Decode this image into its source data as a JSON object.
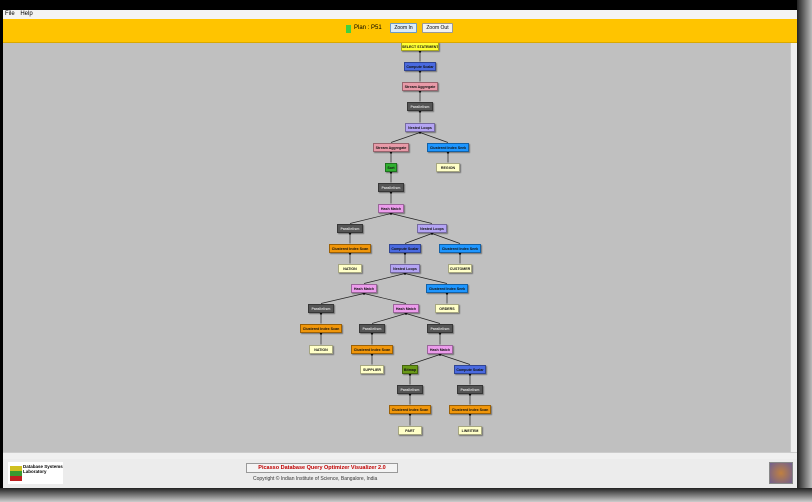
{
  "menu": [
    "File",
    "Help"
  ],
  "toolbar": {
    "plan_label": "Plan : P51",
    "plan_color": "#40d040",
    "zoom_in": "Zoom In",
    "zoom_out": "Zoom Out"
  },
  "footer": {
    "title": "Picasso Database Query Optimizer Visualizer 2.0",
    "copyright": "Copyright © Indian Institute of Science, Bangalore, India",
    "logo_text": "Database Systems Laboratory"
  },
  "colors": {
    "select": "#ffff33",
    "compute": "#4a6ae0",
    "stream": "#e89aa8",
    "parallel": "#555555",
    "nested": "#b4a4f4",
    "seek": "#1e96ff",
    "table": "#ffffc8",
    "sort": "#30b030",
    "hash": "#ec9cec",
    "scan": "#f0960a",
    "bitmap": "#6a9a18"
  },
  "plan_tree": [
    {
      "label": "SELECT STATEMENT",
      "kind": "select",
      "parent": null
    },
    {
      "label": "Compute Scalar",
      "kind": "compute",
      "parent": 0
    },
    {
      "label": "Stream Aggregate",
      "kind": "stream",
      "parent": 1
    },
    {
      "label": "Parallelism",
      "kind": "parallel",
      "parent": 2
    },
    {
      "label": "Nested Loops",
      "kind": "nested",
      "parent": 3
    },
    {
      "label": "Stream Aggregate",
      "kind": "stream",
      "parent": 4
    },
    {
      "label": "Clustered Index Seek",
      "kind": "seek",
      "parent": 4
    },
    {
      "label": "REGION",
      "kind": "table",
      "parent": 6
    },
    {
      "label": "Sort",
      "kind": "sort",
      "parent": 5
    },
    {
      "label": "Parallelism",
      "kind": "parallel",
      "parent": 8
    },
    {
      "label": "Hash Match",
      "kind": "hash",
      "parent": 9
    },
    {
      "label": "Parallelism",
      "kind": "parallel",
      "parent": 10
    },
    {
      "label": "Nested Loops",
      "kind": "nested",
      "parent": 10
    },
    {
      "label": "Clustered Index Scan",
      "kind": "scan",
      "parent": 11
    },
    {
      "label": "Compute Scalar",
      "kind": "compute",
      "parent": 12
    },
    {
      "label": "Clustered Index Seek",
      "kind": "seek",
      "parent": 12
    },
    {
      "label": "NATION",
      "kind": "table",
      "parent": 13
    },
    {
      "label": "CUSTOMER",
      "kind": "table",
      "parent": 15
    },
    {
      "label": "Nested Loops",
      "kind": "nested",
      "parent": 14
    },
    {
      "label": "Hash Match",
      "kind": "hash",
      "parent": 18
    },
    {
      "label": "Clustered Index Seek",
      "kind": "seek",
      "parent": 18
    },
    {
      "label": "ORDERS",
      "kind": "table",
      "parent": 20
    },
    {
      "label": "Parallelism",
      "kind": "parallel",
      "parent": 19
    },
    {
      "label": "Hash Match",
      "kind": "hash",
      "parent": 19
    },
    {
      "label": "Clustered Index Scan",
      "kind": "scan",
      "parent": 22
    },
    {
      "label": "Parallelism",
      "kind": "parallel",
      "parent": 23
    },
    {
      "label": "Parallelism",
      "kind": "parallel",
      "parent": 23
    },
    {
      "label": "NATION",
      "kind": "table",
      "parent": 24
    },
    {
      "label": "Clustered Index Scan",
      "kind": "scan",
      "parent": 25
    },
    {
      "label": "Hash Match",
      "kind": "hash",
      "parent": 26
    },
    {
      "label": "SUPPLIER",
      "kind": "table",
      "parent": 28
    },
    {
      "label": "Bitmap",
      "kind": "bitmap",
      "parent": 29
    },
    {
      "label": "Compute Scalar",
      "kind": "compute",
      "parent": 29
    },
    {
      "label": "Parallelism",
      "kind": "parallel",
      "parent": 31
    },
    {
      "label": "Parallelism",
      "kind": "parallel",
      "parent": 32
    },
    {
      "label": "Clustered Index Scan",
      "kind": "scan",
      "parent": 33
    },
    {
      "label": "Clustered Index Scan",
      "kind": "scan",
      "parent": 34
    },
    {
      "label": "PART",
      "kind": "table",
      "parent": 35
    },
    {
      "label": "LINEITEM",
      "kind": "table",
      "parent": 36
    }
  ]
}
